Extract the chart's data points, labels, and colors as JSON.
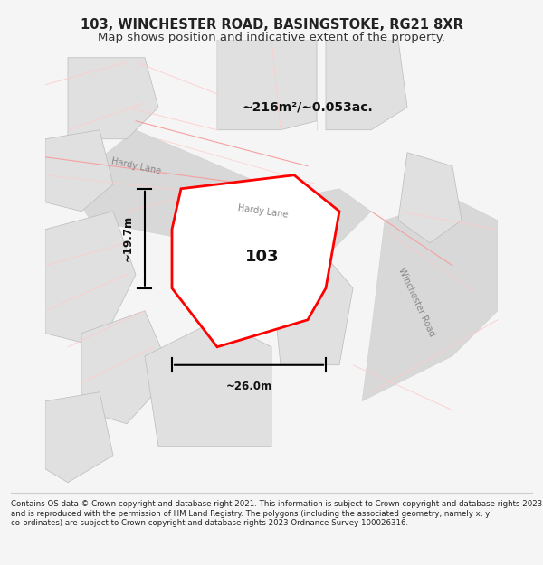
{
  "title_line1": "103, WINCHESTER ROAD, BASINGSTOKE, RG21 8XR",
  "title_line2": "Map shows position and indicative extent of the property.",
  "footer": "Contains OS data © Crown copyright and database right 2021. This information is subject to Crown copyright and database rights 2023 and is reproduced with the permission of HM Land Registry. The polygons (including the associated geometry, namely x, y co-ordinates) are subject to Crown copyright and database rights 2023 Ordnance Survey 100026316.",
  "area_label": "~216m²/~0.053ac.",
  "number_label": "103",
  "width_label": "~26.0m",
  "height_label": "~19.7m",
  "road_label1": "Hardy Lane",
  "road_label2": "Hardy Lane",
  "road_label3": "Winchester Road",
  "bg_color": "#f5f5f5",
  "map_bg": "#ffffff",
  "building_fill": "#e0e0e0",
  "road_fill": "#d8d8d8",
  "red_outline": "#ff0000",
  "pink_road": "#f5a0a0",
  "pink_road_light": "#ffcccc"
}
